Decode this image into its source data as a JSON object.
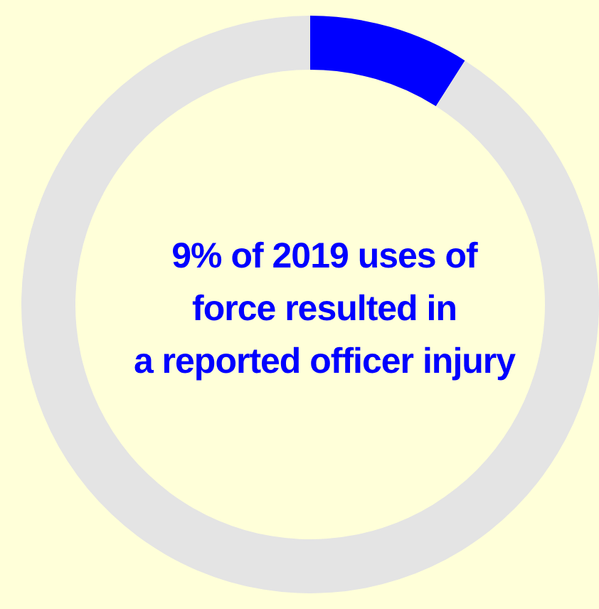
{
  "chart_data": {
    "type": "donut",
    "categories": [
      null,
      null
    ],
    "values": [
      9,
      91
    ],
    "colors": [
      "#0000ff",
      "#e4e4e4"
    ],
    "annotations": [
      "9% of 2019 uses of\nforce resulted in\na reported officer injury"
    ]
  }
}
